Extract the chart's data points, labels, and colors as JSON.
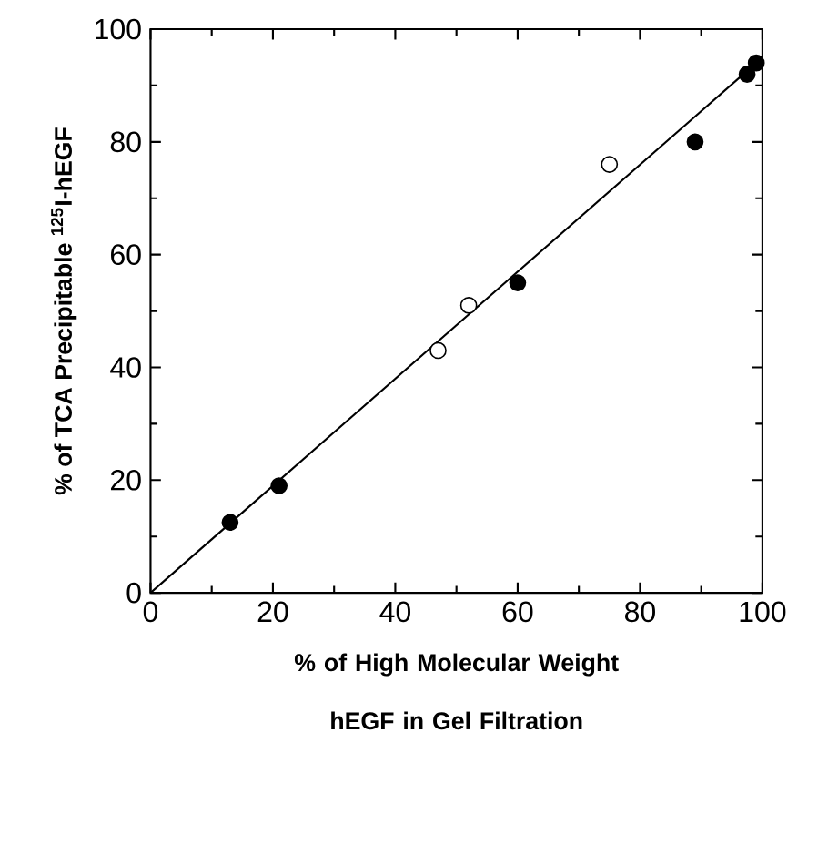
{
  "chart_data": {
    "type": "scatter",
    "xlabel": "% of High Molecular Weight hEGF in Gel Filtration",
    "ylabel": "% of TCA Precipitable $^{125}$I-hEGF",
    "xlim": [
      0,
      100
    ],
    "ylim": [
      0,
      100
    ],
    "xticks": [
      0,
      20,
      40,
      60,
      80,
      100
    ],
    "yticks": [
      0,
      20,
      40,
      60,
      80,
      100
    ],
    "grid": false,
    "series": [
      {
        "color": "#000000",
        "x": [
          13,
          21,
          60,
          89,
          97.5,
          99
        ],
        "values": [
          12.5,
          19,
          55,
          80,
          92,
          94
        ]
      },
      {
        "color": "#ffffff",
        "x": [
          47,
          52,
          75
        ],
        "values": [
          43,
          51,
          76
        ]
      },
      {
        "type": "line",
        "color": "#000000",
        "x": [
          0,
          99
        ],
        "values": [
          0,
          94
        ]
      }
    ]
  }
}
